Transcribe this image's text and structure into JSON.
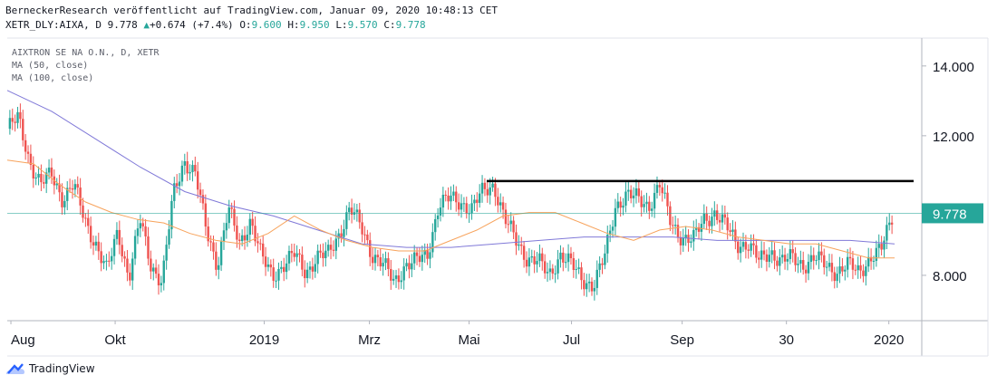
{
  "header": {
    "line1": "BerneckerResearch veröffentlicht auf TradingView.com, Januar 09, 2020 10:48:13 CET",
    "symbol": "XETR_DLY:AIXA, D",
    "last": "9.778",
    "change": "+0.674 (+7.4%)",
    "o_label": "O:",
    "o_value": "9.600",
    "h_label": "H:",
    "h_value": "9.950",
    "l_label": "L:",
    "l_value": "9.570",
    "c_label": "C:",
    "c_value": "9.778"
  },
  "legend": {
    "title": "AIXTRON SE NA O.N., D, XETR",
    "ma50": "MA (50, close)",
    "ma100": "MA (100, close)"
  },
  "footer": {
    "brand": "TradingView"
  },
  "colors": {
    "up": "#26a69a",
    "down": "#ef5350",
    "ma50": "#f7a35c",
    "ma100": "#8079d8",
    "resistance": "#000000",
    "price_line": "#26a69a"
  },
  "chart_data": {
    "type": "candlestick",
    "y_axis": {
      "ticks": [
        "14.000",
        "12.000",
        "8.000"
      ],
      "tick_values": [
        14,
        12,
        8
      ],
      "ylim": [
        6.7,
        14.8
      ]
    },
    "x_axis": {
      "labels": [
        "Aug",
        "Okt",
        "2019",
        "Mrz",
        "Mai",
        "Jul",
        "Sep",
        "30",
        "2020"
      ]
    },
    "last_price": 9.778,
    "last_price_label": "9.778",
    "resistance_level": 10.7,
    "close_series": [
      12.2,
      12.5,
      11.3,
      10.6,
      10.9,
      10.2,
      10.6,
      9.6,
      8.9,
      8.1,
      9.3,
      7.9,
      9.6,
      8.3,
      7.8,
      10.3,
      11.3,
      10.9,
      9.3,
      8.3,
      9.9,
      8.9,
      9.6,
      8.5,
      8.0,
      8.3,
      8.6,
      8.1,
      8.5,
      8.6,
      9.2,
      9.9,
      9.4,
      8.6,
      8.3,
      7.8,
      8.3,
      8.4,
      8.6,
      10.0,
      10.2,
      10.1,
      9.9,
      10.4,
      10.6,
      9.6,
      9.0,
      8.5,
      8.4,
      8.0,
      8.6,
      8.3,
      7.9,
      7.7,
      8.5,
      10.0,
      10.3,
      10.2,
      10.0,
      10.6,
      9.5,
      9.1,
      9.0,
      9.6,
      9.8,
      9.4,
      8.9,
      8.9,
      8.4,
      8.7,
      8.4,
      8.5,
      8.3,
      8.5,
      8.3,
      8.1,
      8.3,
      8.1,
      8.5,
      8.7,
      9.7
    ],
    "ma50_series": [
      11.3,
      11.2,
      10.6,
      10.1,
      9.8,
      9.6,
      9.5,
      9.2,
      9.0,
      8.9,
      9.2,
      9.7,
      9.3,
      9.0,
      8.8,
      8.7,
      8.7,
      9.0,
      9.3,
      9.7,
      9.8,
      9.8,
      9.5,
      9.2,
      9.0,
      9.3,
      9.4,
      9.3,
      9.1,
      9.0,
      8.9,
      8.9,
      8.7,
      8.5,
      8.5
    ],
    "ma100_series": [
      13.3,
      12.7,
      11.9,
      11.1,
      10.4,
      10.0,
      9.7,
      9.3,
      8.9,
      8.8,
      8.8,
      8.9,
      9.0,
      9.1,
      9.1,
      9.1,
      9.0,
      9.0,
      9.0,
      9.0,
      8.9
    ]
  }
}
